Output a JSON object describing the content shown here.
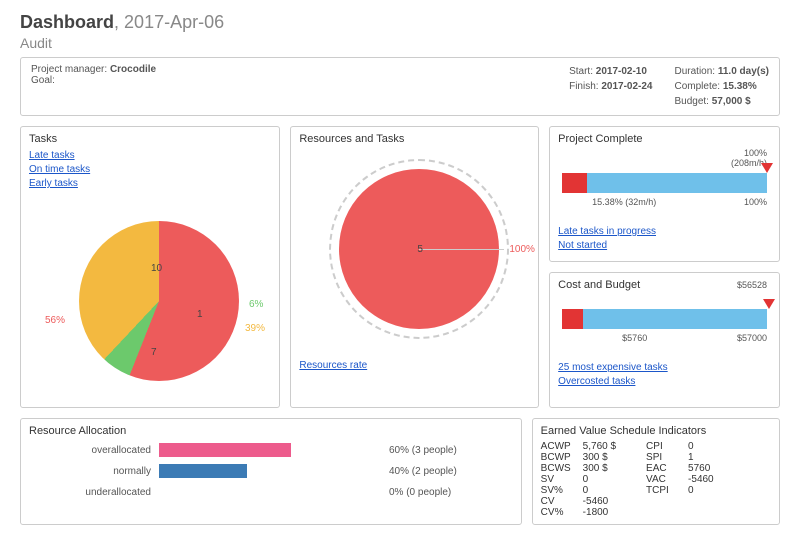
{
  "header": {
    "title_bold": "Dashboard",
    "title_sep": ", ",
    "title_date": "2017-Apr-06",
    "subtitle": "Audit"
  },
  "meta": {
    "pm_label": "Project manager: ",
    "pm_value": "Crocodile",
    "goal_label": "Goal:",
    "start_label": "Start: ",
    "start_value": "2017-02-10",
    "finish_label": "Finish: ",
    "finish_value": "2017-02-24",
    "duration_label": "Duration: ",
    "duration_value": "11.0 day(s)",
    "complete_label": "Complete: ",
    "complete_value": "15.38%",
    "budget_label": "Budget: ",
    "budget_value": "57,000 $"
  },
  "tasks_panel": {
    "title": "Tasks",
    "links": {
      "late": "Late tasks",
      "ontime": "On time tasks",
      "early": "Early tasks"
    },
    "slices": [
      {
        "label": "10",
        "pct": "56%",
        "color": "#ed5b5b"
      },
      {
        "label": "1",
        "pct": "6%",
        "color": "#6cc96c"
      },
      {
        "label": "7",
        "pct": "39%",
        "color": "#f3b940"
      }
    ]
  },
  "resources_panel": {
    "title": "Resources and Tasks",
    "center_label": "5",
    "pct": "100%",
    "link": "Resources rate",
    "color": "#ed5b5b"
  },
  "complete_panel": {
    "title": "Project Complete",
    "top_right_1": "100%",
    "top_right_2": "(208m/h)",
    "below_left": "15.38% (32m/h)",
    "below_right": "100%",
    "red_pct": 12,
    "link1": "Late tasks in progress",
    "link2": "Not started"
  },
  "cost_panel": {
    "title": "Cost and Budget",
    "top_right": "$56528",
    "below_left": "$5760",
    "below_right": "$57000",
    "red_pct": 10,
    "marker_pct": 99,
    "link1": "25 most expensive tasks",
    "link2": "Overcosted tasks"
  },
  "ra_panel": {
    "title": "Resource Allocation",
    "rows": [
      {
        "label": "overallocated",
        "pct": 60,
        "text": "60% (3 people)",
        "color": "#ed5b8c"
      },
      {
        "label": "normally",
        "pct": 40,
        "text": "40% (2 people)",
        "color": "#3c7bb5"
      },
      {
        "label": "underallocated",
        "pct": 0,
        "text": "0% (0 people)",
        "color": "#3c7bb5"
      }
    ]
  },
  "evm_panel": {
    "title": "Earned Value Schedule Indicators",
    "left": [
      {
        "k": "ACWP",
        "v": "5,760 $"
      },
      {
        "k": "BCWP",
        "v": "300 $"
      },
      {
        "k": "BCWS",
        "v": "300 $"
      },
      {
        "k": "SV",
        "v": "0"
      },
      {
        "k": "SV%",
        "v": "0"
      },
      {
        "k": "CV",
        "v": "-5460"
      },
      {
        "k": "CV%",
        "v": "-1800"
      }
    ],
    "right": [
      {
        "k": "CPI",
        "v": "0"
      },
      {
        "k": "SPI",
        "v": "1"
      },
      {
        "k": "EAC",
        "v": "5760"
      },
      {
        "k": "VAC",
        "v": "-5460"
      },
      {
        "k": "TCPI",
        "v": "0"
      }
    ]
  }
}
